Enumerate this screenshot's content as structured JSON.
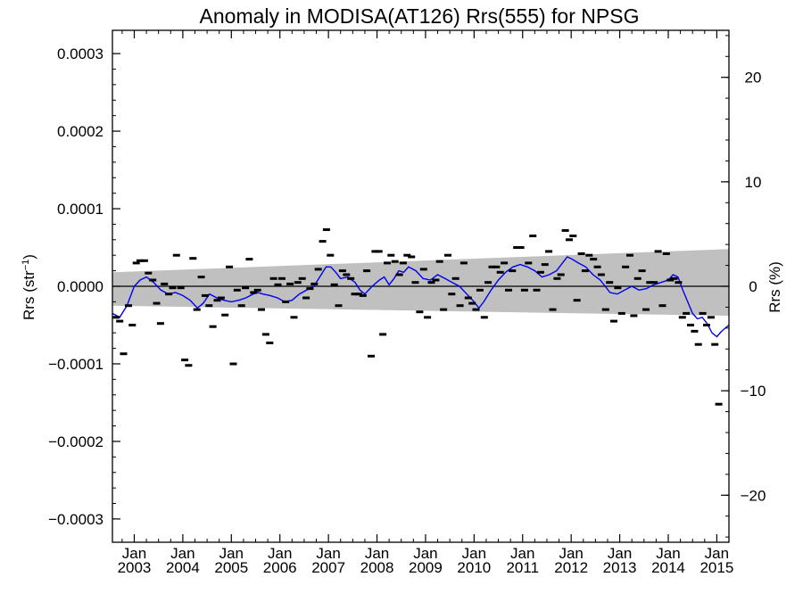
{
  "chart_data": {
    "type": "scatter",
    "title": "Anomaly in MODISA(AT126) Rrs(555) for NPSG",
    "ylabel_left": "Rrs (str",
    "ylabel_left_sup": "−1",
    "ylabel_left_close": ")",
    "ylabel_right": "Rrs (%)",
    "xlim": [
      2002.55,
      2015.25
    ],
    "ylim_left": [
      -0.00033,
      0.00033
    ],
    "ylim_right": [
      -24.5,
      24.5
    ],
    "grid": false,
    "x_ticks": [
      {
        "value": 2003.0,
        "top": "Jan",
        "bottom": "2003"
      },
      {
        "value": 2004.0,
        "top": "Jan",
        "bottom": "2004"
      },
      {
        "value": 2005.0,
        "top": "Jan",
        "bottom": "2005"
      },
      {
        "value": 2006.0,
        "top": "Jan",
        "bottom": "2006"
      },
      {
        "value": 2007.0,
        "top": "Jan",
        "bottom": "2007"
      },
      {
        "value": 2008.0,
        "top": "Jan",
        "bottom": "2008"
      },
      {
        "value": 2009.0,
        "top": "Jan",
        "bottom": "2009"
      },
      {
        "value": 2010.0,
        "top": "Jan",
        "bottom": "2010"
      },
      {
        "value": 2011.0,
        "top": "Jan",
        "bottom": "2011"
      },
      {
        "value": 2012.0,
        "top": "Jan",
        "bottom": "2012"
      },
      {
        "value": 2013.0,
        "top": "Jan",
        "bottom": "2013"
      },
      {
        "value": 2014.0,
        "top": "Jan",
        "bottom": "2014"
      },
      {
        "value": 2015.0,
        "top": "Jan",
        "bottom": "2015"
      }
    ],
    "y_ticks_left": [
      {
        "value": 0.0003,
        "label": "0.0003"
      },
      {
        "value": 0.0002,
        "label": "0.0002"
      },
      {
        "value": 0.0001,
        "label": "0.0001"
      },
      {
        "value": 0.0,
        "label": "0.0000"
      },
      {
        "value": -0.0001,
        "label": "−0.0001"
      },
      {
        "value": -0.0002,
        "label": "−0.0002"
      },
      {
        "value": -0.0003,
        "label": "−0.0003"
      }
    ],
    "y_ticks_right": [
      {
        "value": 20,
        "label": "20"
      },
      {
        "value": 10,
        "label": "10"
      },
      {
        "value": 0,
        "label": "0"
      },
      {
        "value": -10,
        "label": "−10"
      },
      {
        "value": -20,
        "label": "−20"
      }
    ],
    "band": {
      "name": "gray band",
      "color": "#c0c0c0",
      "upper": [
        [
          2002.55,
          1.8e-05
        ],
        [
          2015.25,
          4.8e-05
        ]
      ],
      "lower": [
        [
          2002.55,
          -2.5e-05
        ],
        [
          2015.25,
          -3.8e-05
        ]
      ]
    },
    "zero_line": 0.0,
    "series": [
      {
        "type": "markers",
        "color": "#000000",
        "points": [
          [
            2002.62,
            -4e-05
          ],
          [
            2002.7,
            -4.5e-05
          ],
          [
            2002.78,
            -8.7e-05
          ],
          [
            2002.88,
            -2.5e-05
          ],
          [
            2002.96,
            -5e-05
          ],
          [
            2003.04,
            3e-05
          ],
          [
            2003.12,
            3.3e-05
          ],
          [
            2003.21,
            3.3e-05
          ],
          [
            2003.29,
            1.7e-05
          ],
          [
            2003.38,
            8e-06
          ],
          [
            2003.46,
            -2.2e-05
          ],
          [
            2003.54,
            -4.8e-05
          ],
          [
            2003.62,
            3e-06
          ],
          [
            2003.71,
            -1e-05
          ],
          [
            2003.79,
            -2e-06
          ],
          [
            2003.87,
            4e-05
          ],
          [
            2003.96,
            -2e-06
          ],
          [
            2004.04,
            -9.5e-05
          ],
          [
            2004.12,
            -0.000102
          ],
          [
            2004.21,
            3.6e-05
          ],
          [
            2004.29,
            -3e-05
          ],
          [
            2004.38,
            1.2e-05
          ],
          [
            2004.46,
            -1.2e-05
          ],
          [
            2004.54,
            -2.5e-05
          ],
          [
            2004.62,
            -5.2e-05
          ],
          [
            2004.71,
            -1.8e-05
          ],
          [
            2004.79,
            -1.5e-05
          ],
          [
            2004.87,
            -3.7e-05
          ],
          [
            2004.96,
            2.5e-05
          ],
          [
            2005.04,
            -0.0001
          ],
          [
            2005.12,
            -5e-06
          ],
          [
            2005.21,
            -2.5e-05
          ],
          [
            2005.29,
            -2e-06
          ],
          [
            2005.37,
            3.5e-05
          ],
          [
            2005.46,
            -8e-06
          ],
          [
            2005.54,
            -5e-06
          ],
          [
            2005.62,
            -3e-05
          ],
          [
            2005.71,
            -6.2e-05
          ],
          [
            2005.79,
            -7.3e-05
          ],
          [
            2005.87,
            1e-05
          ],
          [
            2005.96,
            2e-06
          ],
          [
            2006.04,
            1e-05
          ],
          [
            2006.12,
            -2e-05
          ],
          [
            2006.21,
            3e-06
          ],
          [
            2006.29,
            -4e-05
          ],
          [
            2006.37,
            5e-06
          ],
          [
            2006.46,
            1e-05
          ],
          [
            2006.54,
            -1.5e-05
          ],
          [
            2006.62,
            -3e-06
          ],
          [
            2006.71,
            3e-06
          ],
          [
            2006.79,
            2.2e-05
          ],
          [
            2006.88,
            5.8e-05
          ],
          [
            2006.96,
            7.3e-05
          ],
          [
            2007.04,
            4e-05
          ],
          [
            2007.12,
            2e-06
          ],
          [
            2007.21,
            -2.5e-05
          ],
          [
            2007.29,
            2e-05
          ],
          [
            2007.37,
            1.5e-05
          ],
          [
            2007.46,
            1e-05
          ],
          [
            2007.54,
            -1e-05
          ],
          [
            2007.62,
            -1e-05
          ],
          [
            2007.71,
            -1.2e-05
          ],
          [
            2007.79,
            2e-05
          ],
          [
            2007.88,
            -9e-05
          ],
          [
            2007.96,
            4.5e-05
          ],
          [
            2008.04,
            4.5e-05
          ],
          [
            2008.12,
            -6.2e-05
          ],
          [
            2008.21,
            3e-05
          ],
          [
            2008.29,
            4e-05
          ],
          [
            2008.37,
            3.2e-05
          ],
          [
            2008.46,
            1.5e-05
          ],
          [
            2008.54,
            3e-05
          ],
          [
            2008.62,
            4e-05
          ],
          [
            2008.71,
            3.8e-05
          ],
          [
            2008.79,
            5e-06
          ],
          [
            2008.88,
            -3.3e-05
          ],
          [
            2008.96,
            2.2e-05
          ],
          [
            2009.04,
            -4e-05
          ],
          [
            2009.12,
            5e-06
          ],
          [
            2009.21,
            8e-06
          ],
          [
            2009.29,
            3.2e-05
          ],
          [
            2009.37,
            -3e-05
          ],
          [
            2009.46,
            4e-05
          ],
          [
            2009.54,
            -1e-05
          ],
          [
            2009.62,
            1e-05
          ],
          [
            2009.71,
            -2.5e-05
          ],
          [
            2009.79,
            3e-05
          ],
          [
            2009.88,
            -1.5e-05
          ],
          [
            2009.96,
            -2.2e-05
          ],
          [
            2010.04,
            -3e-05
          ],
          [
            2010.12,
            -5e-06
          ],
          [
            2010.21,
            -4e-05
          ],
          [
            2010.29,
            5e-06
          ],
          [
            2010.37,
            2.5e-05
          ],
          [
            2010.46,
            2.5e-05
          ],
          [
            2010.54,
            1.8e-05
          ],
          [
            2010.62,
            3e-05
          ],
          [
            2010.71,
            -5e-06
          ],
          [
            2010.79,
            2e-05
          ],
          [
            2010.88,
            5e-05
          ],
          [
            2010.96,
            5e-05
          ],
          [
            2011.04,
            -5e-06
          ],
          [
            2011.12,
            3e-05
          ],
          [
            2011.21,
            6.5e-05
          ],
          [
            2011.29,
            -5e-06
          ],
          [
            2011.37,
            1.8e-05
          ],
          [
            2011.46,
            2.8e-05
          ],
          [
            2011.54,
            4.5e-05
          ],
          [
            2011.62,
            -3e-05
          ],
          [
            2011.71,
            1e-05
          ],
          [
            2011.79,
            1.5e-05
          ],
          [
            2011.88,
            7.2e-05
          ],
          [
            2011.96,
            6e-05
          ],
          [
            2012.04,
            6.5e-05
          ],
          [
            2012.12,
            -1.8e-05
          ],
          [
            2012.21,
            4.2e-05
          ],
          [
            2012.29,
            2e-05
          ],
          [
            2012.37,
            4e-05
          ],
          [
            2012.46,
            3.5e-05
          ],
          [
            2012.54,
            2.5e-05
          ],
          [
            2012.62,
            1.5e-05
          ],
          [
            2012.71,
            -3e-05
          ],
          [
            2012.79,
            5e-06
          ],
          [
            2012.88,
            -4.5e-05
          ],
          [
            2012.96,
            -2e-06
          ],
          [
            2013.04,
            -3.5e-05
          ],
          [
            2013.12,
            2.5e-05
          ],
          [
            2013.21,
            4e-05
          ],
          [
            2013.29,
            -3.8e-05
          ],
          [
            2013.37,
            1e-05
          ],
          [
            2013.46,
            2e-05
          ],
          [
            2013.54,
            -3e-05
          ],
          [
            2013.62,
            5e-06
          ],
          [
            2013.71,
            5e-06
          ],
          [
            2013.79,
            4.5e-05
          ],
          [
            2013.88,
            -2.5e-05
          ],
          [
            2013.96,
            4.2e-05
          ],
          [
            2014.04,
            8e-06
          ],
          [
            2014.12,
            1e-05
          ],
          [
            2014.21,
            5e-06
          ],
          [
            2014.29,
            -4e-05
          ],
          [
            2014.37,
            -3.5e-05
          ],
          [
            2014.46,
            -5e-05
          ],
          [
            2014.54,
            -5.8e-05
          ],
          [
            2014.62,
            -7.5e-05
          ],
          [
            2014.71,
            -3.5e-05
          ],
          [
            2014.79,
            -5e-05
          ],
          [
            2014.88,
            -4e-05
          ],
          [
            2014.96,
            -7.5e-05
          ],
          [
            2015.04,
            -0.000152
          ]
        ]
      },
      {
        "type": "line",
        "color": "#0000ee",
        "points": [
          [
            2002.55,
            -3.5e-05
          ],
          [
            2002.7,
            -4e-05
          ],
          [
            2002.85,
            -2.5e-05
          ],
          [
            2003.0,
            0.0
          ],
          [
            2003.12,
            8e-06
          ],
          [
            2003.25,
            1.2e-05
          ],
          [
            2003.4,
            5e-06
          ],
          [
            2003.55,
            -5e-06
          ],
          [
            2003.7,
            -1e-05
          ],
          [
            2003.85,
            -8e-06
          ],
          [
            2004.0,
            -1.2e-05
          ],
          [
            2004.15,
            -1.8e-05
          ],
          [
            2004.3,
            -2.8e-05
          ],
          [
            2004.42,
            -2.2e-05
          ],
          [
            2004.55,
            -1e-05
          ],
          [
            2004.7,
            -1.5e-05
          ],
          [
            2004.85,
            -1.8e-05
          ],
          [
            2005.0,
            -2e-05
          ],
          [
            2005.15,
            -1.8e-05
          ],
          [
            2005.3,
            -1.5e-05
          ],
          [
            2005.45,
            -1e-05
          ],
          [
            2005.55,
            -8e-06
          ],
          [
            2005.65,
            -1e-05
          ],
          [
            2005.8,
            -1.2e-05
          ],
          [
            2005.95,
            -1.5e-05
          ],
          [
            2006.1,
            -2e-05
          ],
          [
            2006.25,
            -1.8e-05
          ],
          [
            2006.4,
            -1e-05
          ],
          [
            2006.55,
            -5e-06
          ],
          [
            2006.7,
            0.0
          ],
          [
            2006.85,
            1.5e-05
          ],
          [
            2006.95,
            2.5e-05
          ],
          [
            2007.05,
            2.5e-05
          ],
          [
            2007.15,
            1.8e-05
          ],
          [
            2007.25,
            1e-05
          ],
          [
            2007.4,
            1.2e-05
          ],
          [
            2007.55,
            5e-06
          ],
          [
            2007.65,
            -5e-06
          ],
          [
            2007.75,
            -1e-05
          ],
          [
            2007.9,
            0.0
          ],
          [
            2008.05,
            8e-06
          ],
          [
            2008.15,
            1.2e-05
          ],
          [
            2008.25,
            2e-06
          ],
          [
            2008.35,
            1e-05
          ],
          [
            2008.45,
            2e-05
          ],
          [
            2008.55,
            1.8e-05
          ],
          [
            2008.65,
            2.5e-05
          ],
          [
            2008.8,
            2e-05
          ],
          [
            2008.95,
            1e-05
          ],
          [
            2009.1,
            8e-06
          ],
          [
            2009.25,
            1.5e-05
          ],
          [
            2009.4,
            1e-05
          ],
          [
            2009.55,
            5e-06
          ],
          [
            2009.7,
            0.0
          ],
          [
            2009.85,
            -1e-05
          ],
          [
            2010.0,
            -2e-05
          ],
          [
            2010.1,
            -2.8e-05
          ],
          [
            2010.2,
            -2e-05
          ],
          [
            2010.35,
            -5e-06
          ],
          [
            2010.5,
            8e-06
          ],
          [
            2010.65,
            1.8e-05
          ],
          [
            2010.8,
            2.5e-05
          ],
          [
            2010.95,
            2.8e-05
          ],
          [
            2011.1,
            2.5e-05
          ],
          [
            2011.25,
            2e-05
          ],
          [
            2011.4,
            1.2e-05
          ],
          [
            2011.55,
            1.5e-05
          ],
          [
            2011.7,
            2e-05
          ],
          [
            2011.82,
            3e-05
          ],
          [
            2011.92,
            3.8e-05
          ],
          [
            2012.02,
            3.5e-05
          ],
          [
            2012.15,
            3e-05
          ],
          [
            2012.3,
            2.5e-05
          ],
          [
            2012.45,
            1.5e-05
          ],
          [
            2012.6,
            8e-06
          ],
          [
            2012.7,
            0.0
          ],
          [
            2012.8,
            -8e-06
          ],
          [
            2012.95,
            -1e-05
          ],
          [
            2013.1,
            -5e-06
          ],
          [
            2013.25,
            0.0
          ],
          [
            2013.4,
            -5e-06
          ],
          [
            2013.55,
            -3e-06
          ],
          [
            2013.7,
            2e-06
          ],
          [
            2013.85,
            5e-06
          ],
          [
            2014.0,
            8e-06
          ],
          [
            2014.1,
            1.5e-05
          ],
          [
            2014.2,
            1.2e-05
          ],
          [
            2014.3,
            -5e-06
          ],
          [
            2014.4,
            -2e-05
          ],
          [
            2014.5,
            -3.5e-05
          ],
          [
            2014.6,
            -4.2e-05
          ],
          [
            2014.7,
            -4e-05
          ],
          [
            2014.8,
            -4.8e-05
          ],
          [
            2014.9,
            -6e-05
          ],
          [
            2015.0,
            -6.5e-05
          ],
          [
            2015.1,
            -5.8e-05
          ],
          [
            2015.25,
            -5e-05
          ]
        ]
      }
    ]
  }
}
